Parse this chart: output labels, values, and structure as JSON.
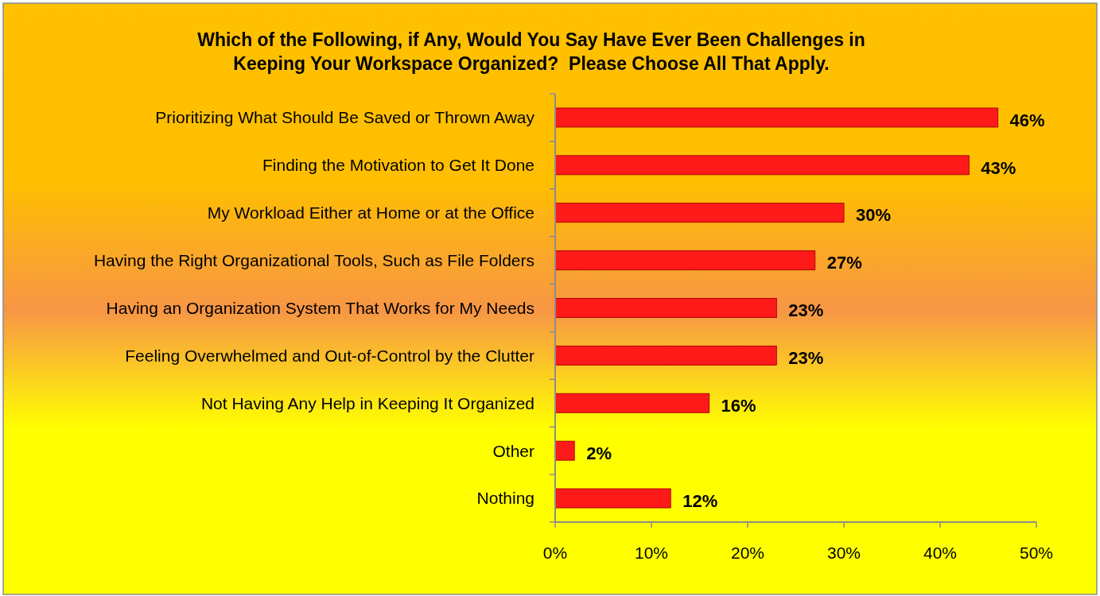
{
  "chart_data": {
    "type": "bar",
    "orientation": "horizontal",
    "title": "Which of the Following, if Any, Would You Say Have Ever Been Challenges in\nKeeping Your Workspace Organized?  Please Choose All That Apply.",
    "categories": [
      "Prioritizing What Should Be Saved or Thrown Away",
      "Finding the Motivation to Get It Done",
      "My Workload Either at Home or at the Office",
      "Having the Right Organizational Tools, Such as File Folders",
      "Having an Organization System That Works for My Needs",
      "Feeling Overwhelmed and Out-of-Control by the Clutter",
      "Not Having Any Help in Keeping It Organized",
      "Other",
      "Nothing"
    ],
    "values": [
      46,
      43,
      30,
      27,
      23,
      23,
      16,
      2,
      12
    ],
    "value_labels": [
      "46%",
      "43%",
      "30%",
      "27%",
      "23%",
      "23%",
      "16%",
      "2%",
      "12%"
    ],
    "color": "#ff1a1a",
    "xlim": [
      0,
      50
    ],
    "xticks": [
      {
        "value": 0,
        "label": "0%"
      },
      {
        "value": 10,
        "label": "10%"
      },
      {
        "value": 20,
        "label": "20%"
      },
      {
        "value": 30,
        "label": "30%"
      },
      {
        "value": 40,
        "label": "40%"
      },
      {
        "value": 50,
        "label": "50%"
      }
    ],
    "grid": false
  }
}
